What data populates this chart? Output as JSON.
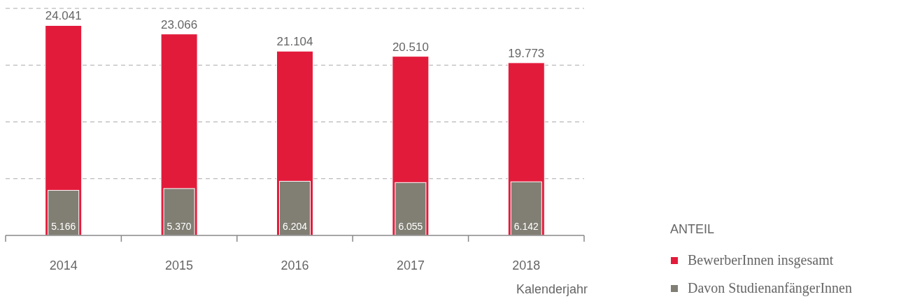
{
  "chart_data": {
    "type": "bar",
    "xlabel": "Kalenderjahr",
    "legend_title": "ANTEIL",
    "categories": [
      "2014",
      "2015",
      "2016",
      "2017",
      "2018"
    ],
    "series": [
      {
        "name": "BewerberInnen insgesamt",
        "color": "#e31b3b",
        "values": [
          24041,
          23066,
          21104,
          20510,
          19773
        ],
        "value_labels": [
          "24.041",
          "23.066",
          "21.104",
          "20.510",
          "19.773"
        ]
      },
      {
        "name": "Davon StudienanfängerInnen",
        "color": "#817f74",
        "values": [
          5166,
          5370,
          6204,
          6055,
          6142
        ],
        "value_labels": [
          "5.166",
          "5.370",
          "6.204",
          "6.055",
          "6.142"
        ]
      }
    ],
    "ylim": [
      0,
      26000
    ],
    "yticks": [
      {
        "value": 6500,
        "label": null
      },
      {
        "value": 13000,
        "label": null
      },
      {
        "value": 19500,
        "label": null
      },
      {
        "value": 26000,
        "label": null
      }
    ],
    "grid": "y",
    "tick_labels": "x",
    "legend": "bottom right"
  }
}
